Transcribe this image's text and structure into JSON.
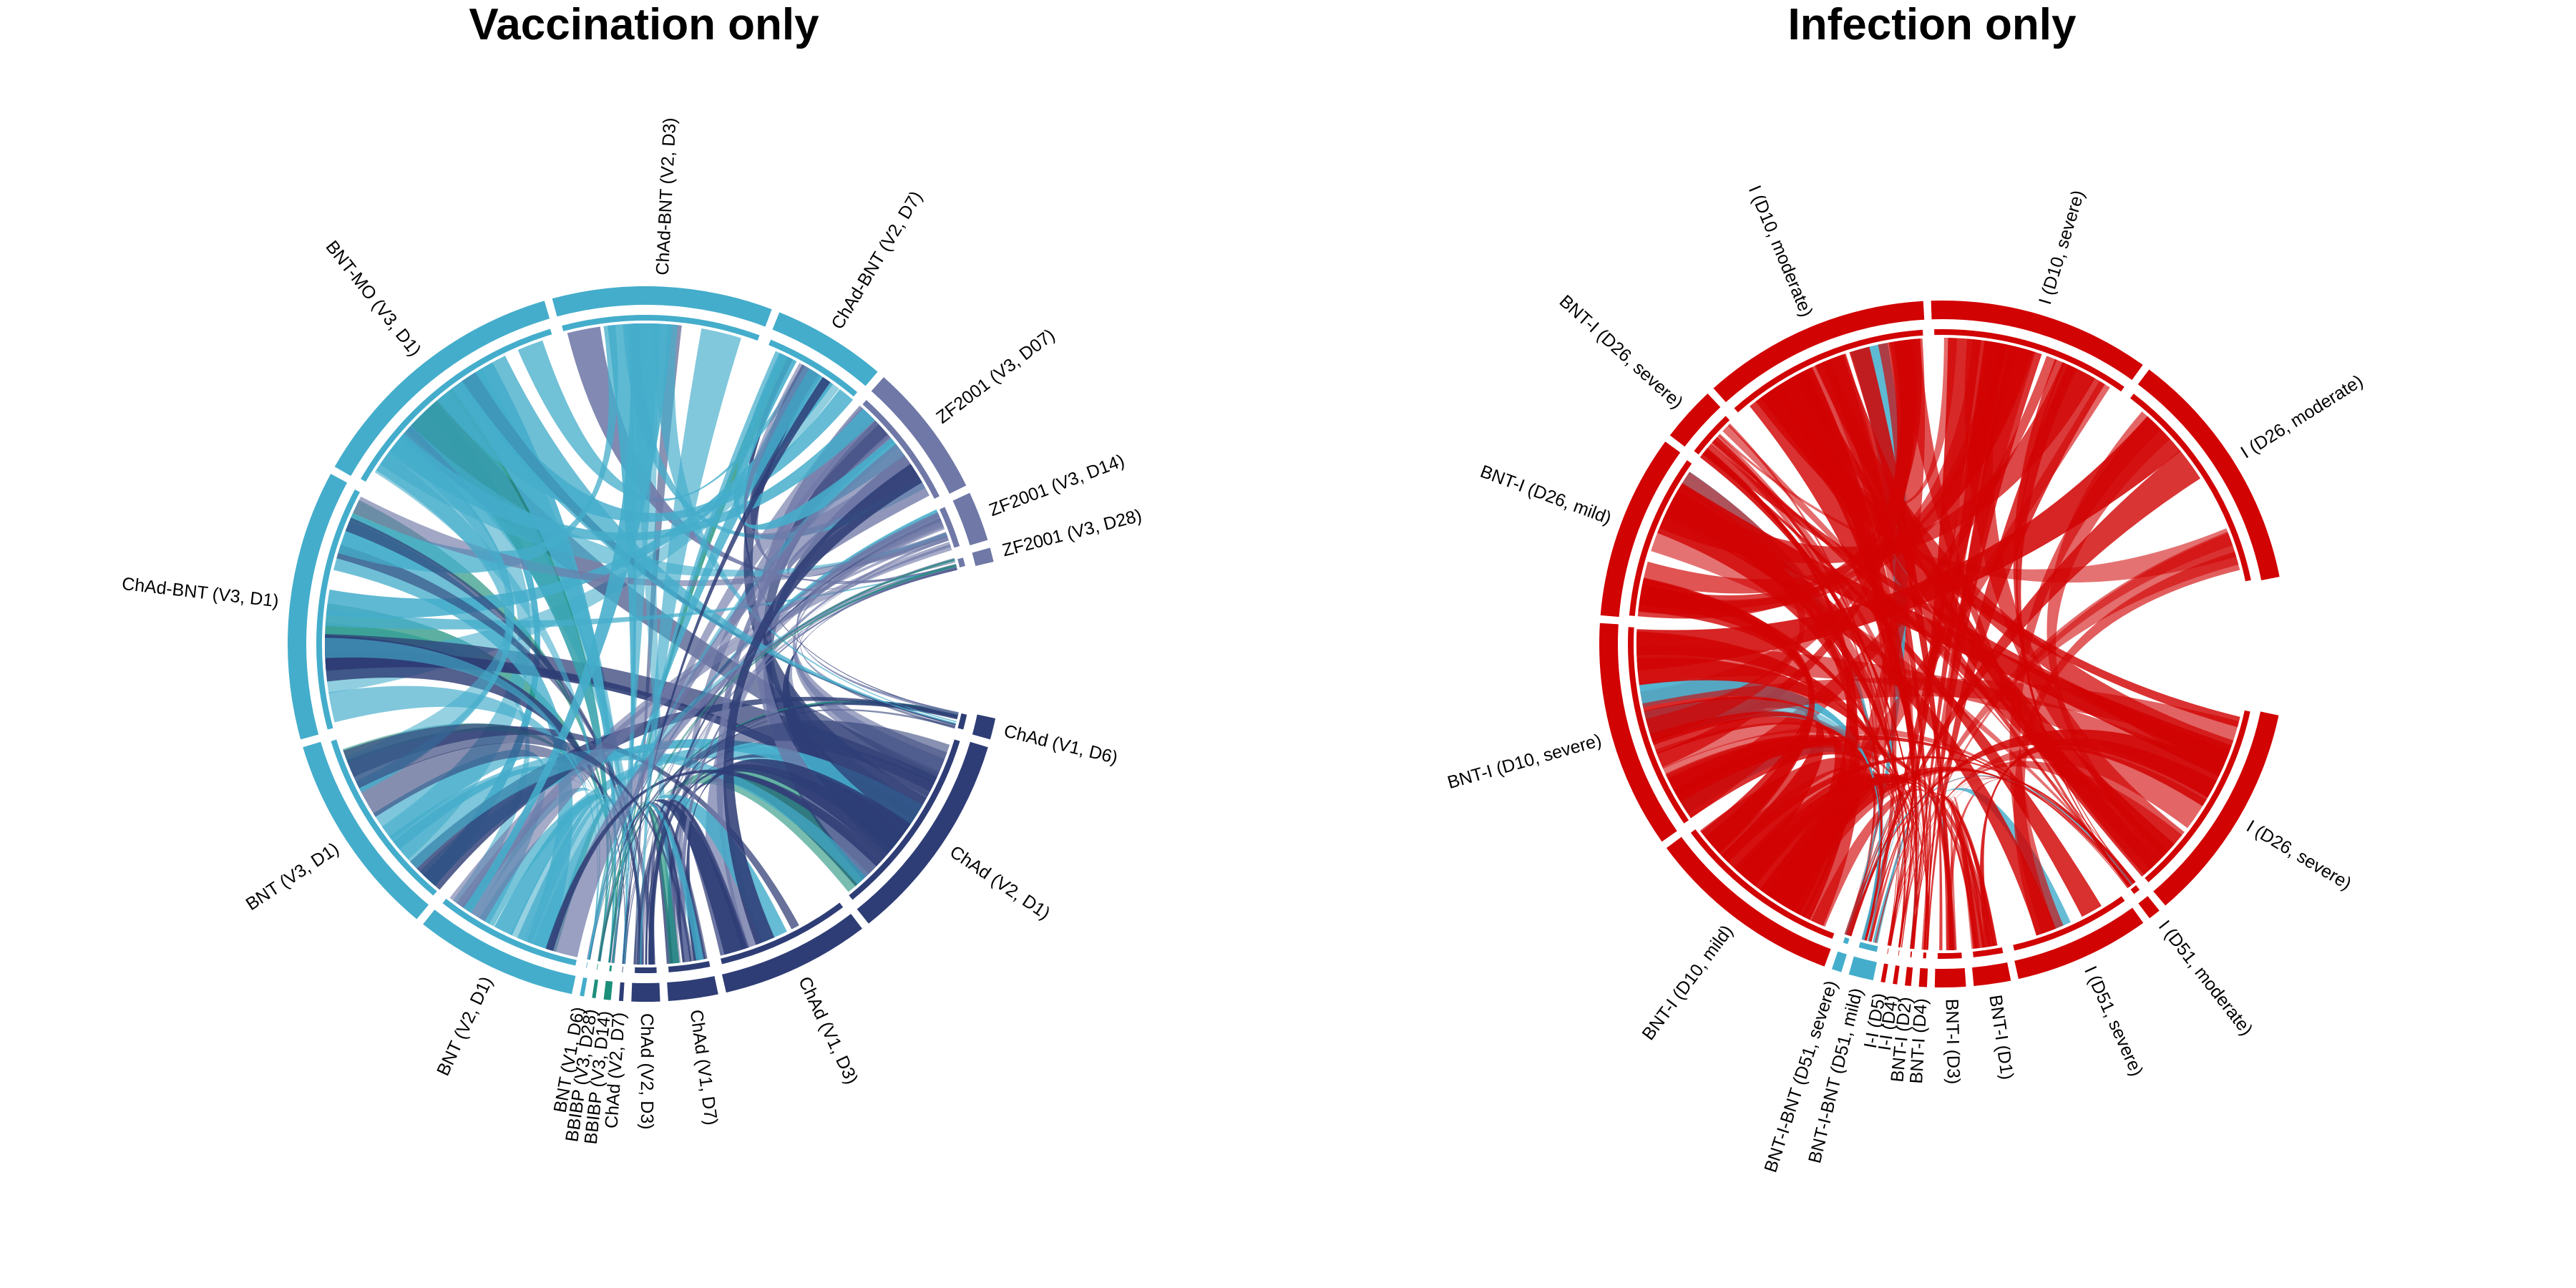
{
  "panels": [
    {
      "title": "Vaccination only",
      "gap_direction": "right",
      "sectors": [
        {
          "label": "ChAd (V1, D6)",
          "weight": 3.0,
          "color": "#2e3d75"
        },
        {
          "label": "ChAd (V2, D1)",
          "weight": 30.0,
          "color": "#2e3d75"
        },
        {
          "label": "ChAd (V1, D3)",
          "weight": 21.0,
          "color": "#2e3d75"
        },
        {
          "label": "ChAd (V1, D7)",
          "weight": 7.0,
          "color": "#2e3d75"
        },
        {
          "label": "ChAd (V2, D3)",
          "weight": 4.0,
          "color": "#2e3d75"
        },
        {
          "label": "ChAd (V2, D7)",
          "weight": 0.6,
          "color": "#2e3d75"
        },
        {
          "label": "BBIBP (V3, D14)",
          "weight": 1.0,
          "color": "#1b8f7a"
        },
        {
          "label": "BBIBP (V3, D28)",
          "weight": 0.5,
          "color": "#1b8f7a"
        },
        {
          "label": "BNT (V1, D6)",
          "weight": 0.6,
          "color": "#44adcb"
        },
        {
          "label": "BNT (V2, D1)",
          "weight": 23.0,
          "color": "#44adcb"
        },
        {
          "label": "BNT (V3, D1)",
          "weight": 29.0,
          "color": "#44adcb"
        },
        {
          "label": "ChAd-BNT (V3, D1)",
          "weight": 38.0,
          "color": "#44adcb"
        },
        {
          "label": "BNT-MO (V3, D1)",
          "weight": 38.0,
          "color": "#44adcb"
        },
        {
          "label": "ChAd-BNT (V2, D3)",
          "weight": 31.0,
          "color": "#44adcb"
        },
        {
          "label": "ChAd-BNT (V2, D7)",
          "weight": 16.0,
          "color": "#44adcb"
        },
        {
          "label": "ZF2001 (V3, D07)",
          "weight": 19.0,
          "color": "#6f78a6"
        },
        {
          "label": "ZF2001 (V3, D14)",
          "weight": 7.0,
          "color": "#6f78a6"
        },
        {
          "label": "ZF2001 (V3, D28)",
          "weight": 2.0,
          "color": "#6f78a6"
        }
      ]
    },
    {
      "title": "Infection only",
      "gap_direction": "right",
      "sectors": [
        {
          "label": "I (D26, severe)",
          "weight": 36.0,
          "color": "#d10303"
        },
        {
          "label": "I (D51, moderate)",
          "weight": 2.0,
          "color": "#d10303"
        },
        {
          "label": "I (D51, severe)",
          "weight": 22.0,
          "color": "#d10303"
        },
        {
          "label": "BNT-I (D1)",
          "weight": 6.0,
          "color": "#d10303"
        },
        {
          "label": "BNT-I (D3)",
          "weight": 5.0,
          "color": "#d10303"
        },
        {
          "label": "BNT-I (D4)",
          "weight": 1.3,
          "color": "#d10303"
        },
        {
          "label": "BNT-I (D2)",
          "weight": 1.0,
          "color": "#d10303"
        },
        {
          "label": "I-I (D4)",
          "weight": 0.7,
          "color": "#d10303"
        },
        {
          "label": "I-I (D5)",
          "weight": 0.7,
          "color": "#d10303"
        },
        {
          "label": "BNT-I-BNT (D51, mild)",
          "weight": 4.0,
          "color": "#44adcb"
        },
        {
          "label": "BNT-I-BNT (D51, severe)",
          "weight": 1.6,
          "color": "#44adcb"
        },
        {
          "label": "BNT-I (D10, mild)",
          "weight": 32.0,
          "color": "#d10303"
        },
        {
          "label": "BNT-I (D10, severe)",
          "weight": 37.0,
          "color": "#d10303"
        },
        {
          "label": "BNT-I (D26, mild)",
          "weight": 30.0,
          "color": "#d10303"
        },
        {
          "label": "BNT-I (D26, severe)",
          "weight": 9.0,
          "color": "#d10303"
        },
        {
          "label": "I (D10, moderate)",
          "weight": 37.0,
          "color": "#d10303"
        },
        {
          "label": "I (D10, severe)",
          "weight": 36.0,
          "color": "#d10303"
        },
        {
          "label": "I (D26, moderate)",
          "weight": 40.0,
          "color": "#d10303"
        }
      ]
    }
  ]
}
